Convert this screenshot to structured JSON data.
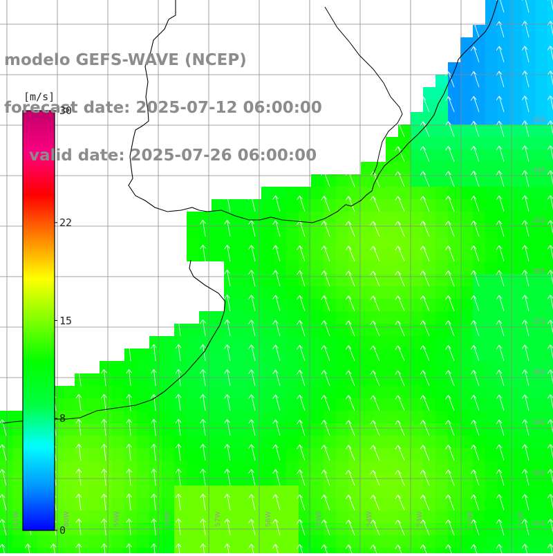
{
  "title": {
    "line1": "modelo GEFS-WAVE (NCEP)",
    "line2": "forecast date: 2025-07-12 06:00:00",
    "line3": "valid date: 2025-07-26 06:00:00"
  },
  "colorbar": {
    "unit": "[m/s]",
    "ticks": [
      "30",
      "22",
      "15",
      "8",
      "0"
    ],
    "tick_values": [
      30,
      22,
      15,
      8,
      0
    ],
    "range": [
      0,
      30
    ],
    "colors": [
      "#0000ff",
      "#0090ff",
      "#00ffff",
      "#00ff40",
      "#00ff00",
      "#80ff00",
      "#ffff00",
      "#ff8000",
      "#ff0000",
      "#ff0080",
      "#c0006a"
    ]
  },
  "map": {
    "region": "South Atlantic coast",
    "background_color": "#ffffff",
    "coastline_color": "#000000",
    "gridline_color": "#888888",
    "vector_color": "#ffffff",
    "lat_labels": [
      "33S",
      "34S",
      "35S",
      "36S",
      "37S",
      "38S",
      "39S",
      "40S",
      "41S"
    ],
    "lon_labels": [
      "61W",
      "60W",
      "59W",
      "58W",
      "57W",
      "56W",
      "55W",
      "54W",
      "53W",
      "52W",
      "51W"
    ],
    "field_note": "wind speed field with arrow vectors; mostly 10-14 m/s (green), lower values near NE (blue/cyan)"
  }
}
